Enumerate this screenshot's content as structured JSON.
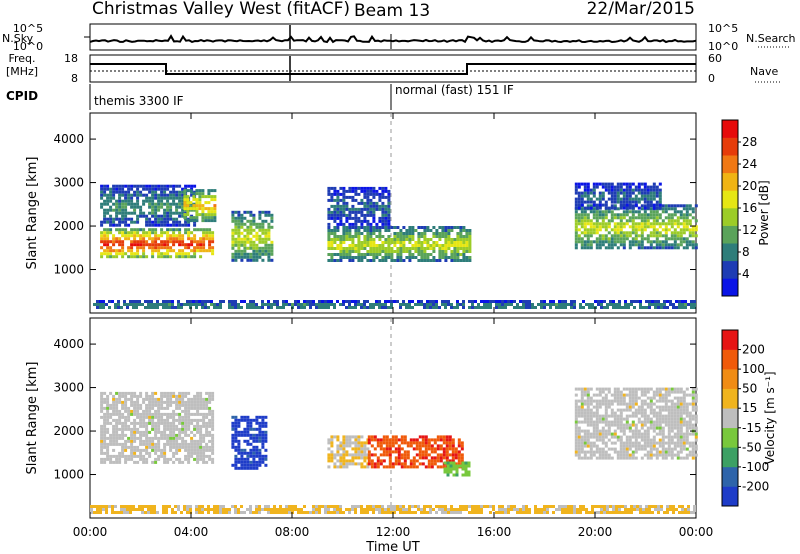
{
  "header": {
    "station": "Christmas Valley West (fitACF)",
    "beam": "Beam 13",
    "date": "22/Mar/2015"
  },
  "noise_panel": {
    "left_label": "N.Sky",
    "right_label": "N.Search",
    "left_ticks": [
      "10^5",
      "10^0"
    ],
    "right_ticks": [
      "10^5",
      "10^0"
    ]
  },
  "freq_panel": {
    "left_label_1": "Freq.",
    "left_label_2": "[MHz]",
    "right_label": "Nave",
    "left_ticks": [
      "18",
      "8"
    ],
    "right_ticks": [
      "60",
      "0"
    ]
  },
  "cpid_panel": {
    "label": "CPID",
    "modes": [
      "themis 3300 IF",
      "normal (fast) 151 IF"
    ]
  },
  "colorbars": {
    "power": {
      "label": "Power [dB]",
      "ticks": [
        "28",
        "24",
        "20",
        "16",
        "12",
        "8",
        "4"
      ],
      "colors": [
        "#0a14e6",
        "#1e3cb4",
        "#2e7d7a",
        "#5aa35a",
        "#9ccc28",
        "#e6e614",
        "#f0b414",
        "#f07814",
        "#e63c0a",
        "#e60a0a"
      ]
    },
    "velocity": {
      "label": "Velocity [m s⁻¹]",
      "ticks": [
        "200",
        "100",
        "50",
        "15",
        "-15",
        "-50",
        "-100",
        "-200"
      ],
      "colors": [
        "#1e3cc8",
        "#2e64aa",
        "#3ca064",
        "#78c83c",
        "#bebebe",
        "#f0b41e",
        "#f08c14",
        "#f05a0a",
        "#e61414"
      ]
    }
  },
  "chart_data": [
    {
      "type": "heatmap",
      "title": "Power",
      "ylabel": "Slant Range [km]",
      "xlabel": "",
      "xlim": [
        0,
        24
      ],
      "ylim": [
        0,
        4600
      ],
      "yticks": [
        "1000",
        "2000",
        "3000",
        "4000"
      ],
      "colorbar_label": "Power [dB]",
      "clim": [
        0,
        32
      ],
      "patches": [
        {
          "t0": 0.4,
          "t1": 4.9,
          "r0": 1280,
          "r1": 1950,
          "value": 24
        },
        {
          "t0": 0.4,
          "t1": 4.2,
          "r0": 2000,
          "r1": 2950,
          "value": 8
        },
        {
          "t0": 3.7,
          "t1": 4.9,
          "r0": 2150,
          "r1": 2850,
          "value": 18
        },
        {
          "t0": 5.6,
          "t1": 7.2,
          "r0": 1200,
          "r1": 2350,
          "value": 14
        },
        {
          "t0": 9.4,
          "t1": 15.0,
          "r0": 1200,
          "r1": 2000,
          "value": 14
        },
        {
          "t0": 9.4,
          "t1": 11.8,
          "r0": 2050,
          "r1": 2900,
          "value": 6
        },
        {
          "t0": 19.2,
          "t1": 24.0,
          "r0": 1500,
          "r1": 2500,
          "value": 14
        },
        {
          "t0": 19.2,
          "t1": 22.6,
          "r0": 2400,
          "r1": 3000,
          "value": 6
        },
        {
          "t0": 0.0,
          "t1": 24.0,
          "r0": 100,
          "r1": 300,
          "value": 8
        }
      ]
    },
    {
      "type": "heatmap",
      "title": "Velocity",
      "ylabel": "Slant Range [km]",
      "xlabel": "Time UT",
      "xlim": [
        0,
        24
      ],
      "ylim": [
        0,
        4600
      ],
      "xticks": [
        "00:00",
        "04:00",
        "08:00",
        "12:00",
        "16:00",
        "20:00",
        "00:00"
      ],
      "yticks": [
        "1000",
        "2000",
        "3000",
        "4000"
      ],
      "colorbar_label": "Velocity [m s⁻¹]",
      "clim": [
        -250,
        250
      ],
      "patches": [
        {
          "t0": 0.4,
          "t1": 4.9,
          "r0": 1250,
          "r1": 2900,
          "value": 0
        },
        {
          "t0": 5.6,
          "t1": 7.0,
          "r0": 1150,
          "r1": 2350,
          "value": -220
        },
        {
          "t0": 9.4,
          "t1": 11.0,
          "r0": 1200,
          "r1": 1900,
          "value": 30
        },
        {
          "t0": 11.0,
          "t1": 14.8,
          "r0": 1200,
          "r1": 1900,
          "value": 180
        },
        {
          "t0": 14.0,
          "t1": 15.0,
          "r0": 1000,
          "r1": 1300,
          "value": -60
        },
        {
          "t0": 19.2,
          "t1": 24.0,
          "r0": 1400,
          "r1": 3000,
          "value": 0
        },
        {
          "t0": 0.0,
          "t1": 24.0,
          "r0": 100,
          "r1": 300,
          "value": 40
        }
      ]
    }
  ]
}
